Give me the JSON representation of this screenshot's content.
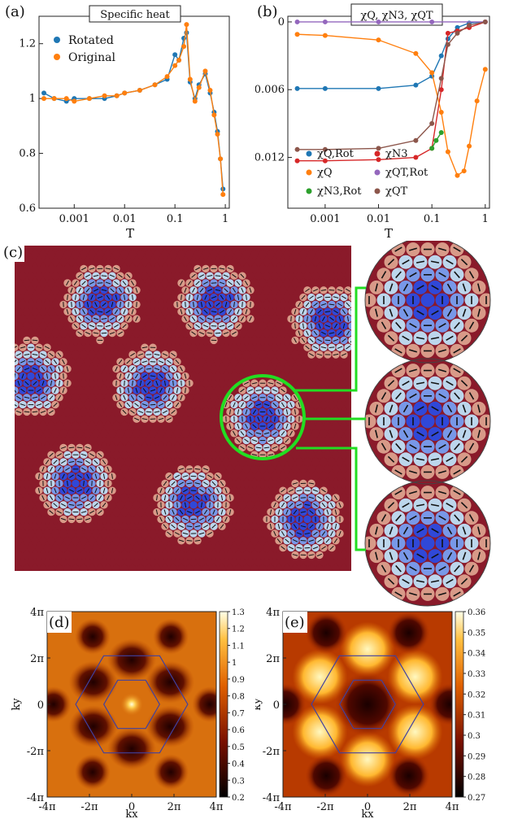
{
  "figure": {
    "panel_a": {
      "label": "(a)",
      "title": "Specific heat",
      "xlabel": "T",
      "yticks": [
        "1.2",
        "1",
        "0.8",
        "0.6"
      ],
      "xticks": [
        "0.001",
        "0.01",
        "0.1",
        "1"
      ],
      "legend": [
        "Rotated",
        "Original"
      ],
      "colors": {
        "rotated": "#1f77b4",
        "original": "#ff7f0e"
      }
    },
    "panel_b": {
      "label": "(b)",
      "title": "χQ, χN3, χQT",
      "xlabel": "T",
      "yticks": [
        "0",
        "-0.006",
        "-0.012"
      ],
      "xticks": [
        "0.001",
        "0.01",
        "0.1",
        "1"
      ],
      "legend": [
        "χQ,Rot",
        "χN3",
        "χQ",
        "χQT,Rot",
        "χN3,Rot",
        "χQT"
      ],
      "colors": {
        "q_rot": "#1f77b4",
        "n3": "#d62728",
        "q": "#ff7f0e",
        "qt_rot": "#9467bd",
        "n3_rot": "#2ca02c",
        "qt": "#8c564b"
      }
    },
    "panel_c": {
      "label": "(c)"
    },
    "panel_d": {
      "label": "(d)",
      "xlabel": "kx",
      "ylabel": "ky",
      "xticks": [
        "-4π",
        "-2π",
        "0",
        "2π",
        "4π"
      ],
      "yticks": [
        "4π",
        "2π",
        "0",
        "-2π",
        "-4π"
      ],
      "colorbar": [
        "1.3",
        "1.2",
        "1.1",
        "1",
        "0.9",
        "0.8",
        "0.7",
        "0.6",
        "0.5",
        "0.4",
        "0.3",
        "0.2"
      ]
    },
    "panel_e": {
      "label": "(e)",
      "xlabel": "kx",
      "ylabel": "ky",
      "xticks": [
        "-4π",
        "-2π",
        "0",
        "2π",
        "4π"
      ],
      "yticks": [
        "4π",
        "2π",
        "0",
        "-2π",
        "-4π"
      ],
      "colorbar": [
        "0.36",
        "0.35",
        "0.34",
        "0.33",
        "0.32",
        "0.31",
        "0.3",
        "0.29",
        "0.28",
        "0.27"
      ]
    }
  },
  "chart_data": [
    {
      "type": "scatter",
      "title": "Specific heat",
      "xlabel": "T",
      "ylabel": "",
      "xscale": "log",
      "xlim": [
        0.0002,
        1.2
      ],
      "ylim": [
        0.6,
        1.3
      ],
      "series": [
        {
          "name": "Rotated",
          "x": [
            0.00025,
            0.0004,
            0.0007,
            0.001,
            0.002,
            0.004,
            0.007,
            0.01,
            0.02,
            0.04,
            0.07,
            0.1,
            0.12,
            0.15,
            0.17,
            0.2,
            0.25,
            0.3,
            0.4,
            0.5,
            0.6,
            0.7,
            0.8,
            0.9
          ],
          "y": [
            1.02,
            1.0,
            0.99,
            1.0,
            1.0,
            1.0,
            1.01,
            1.02,
            1.03,
            1.05,
            1.07,
            1.16,
            1.14,
            1.22,
            1.24,
            1.06,
            1.0,
            1.05,
            1.09,
            1.02,
            0.95,
            0.88,
            0.78,
            0.67
          ]
        },
        {
          "name": "Original",
          "x": [
            0.00025,
            0.0004,
            0.0007,
            0.001,
            0.002,
            0.004,
            0.007,
            0.01,
            0.02,
            0.04,
            0.07,
            0.1,
            0.12,
            0.15,
            0.17,
            0.2,
            0.25,
            0.3,
            0.4,
            0.5,
            0.6,
            0.7,
            0.8,
            0.9
          ],
          "y": [
            1.0,
            1.0,
            1.0,
            0.99,
            1.0,
            1.01,
            1.01,
            1.02,
            1.03,
            1.05,
            1.08,
            1.12,
            1.14,
            1.19,
            1.27,
            1.07,
            0.99,
            1.04,
            1.1,
            1.03,
            0.94,
            0.87,
            0.78,
            0.65
          ]
        }
      ]
    },
    {
      "type": "scatter",
      "title": "χQ, χN3, χQT",
      "xlabel": "T",
      "ylabel": "",
      "xscale": "log",
      "xlim": [
        0.0002,
        1.2
      ],
      "ylim": [
        -0.0165,
        0.0005
      ],
      "series": [
        {
          "name": "χQ,Rot",
          "x": [
            0.0003,
            0.001,
            0.01,
            0.05,
            0.1,
            0.15,
            0.2,
            0.3,
            0.5,
            1.0
          ],
          "y": [
            -0.0059,
            -0.0059,
            -0.0059,
            -0.0056,
            -0.0048,
            -0.003,
            -0.0015,
            -0.0005,
            -0.0001,
            0.0
          ]
        },
        {
          "name": "χN3",
          "x": [
            0.0003,
            0.001,
            0.01,
            0.05,
            0.1,
            0.15,
            0.2,
            0.3,
            0.5,
            1.0
          ],
          "y": [
            -0.0123,
            -0.0123,
            -0.0122,
            -0.012,
            -0.0112,
            -0.006,
            -0.001,
            -0.0008,
            -0.0005,
            0.0
          ]
        },
        {
          "name": "χQ",
          "x": [
            0.0003,
            0.001,
            0.01,
            0.05,
            0.1,
            0.15,
            0.2,
            0.3,
            0.4,
            0.5,
            0.7,
            1.0
          ],
          "y": [
            -0.0011,
            -0.0012,
            -0.0016,
            -0.0028,
            -0.0045,
            -0.008,
            -0.0115,
            -0.0136,
            -0.0132,
            -0.011,
            -0.007,
            -0.0042
          ]
        },
        {
          "name": "χQT,Rot",
          "x": [
            0.0003,
            0.001,
            0.01,
            0.1,
            1.0
          ],
          "y": [
            0.0,
            0.0,
            0.0,
            0.0,
            0.0
          ]
        },
        {
          "name": "χN3,Rot",
          "x": [
            0.1,
            0.12,
            0.15
          ],
          "y": [
            -0.0112,
            -0.0105,
            -0.0098
          ]
        },
        {
          "name": "χQT",
          "x": [
            0.0003,
            0.001,
            0.01,
            0.05,
            0.1,
            0.15,
            0.2,
            0.3,
            0.5,
            1.0
          ],
          "y": [
            -0.0113,
            -0.0113,
            -0.0112,
            -0.0105,
            -0.009,
            -0.005,
            -0.002,
            -0.001,
            -0.0003,
            0.0
          ]
        }
      ]
    },
    {
      "type": "heatmap",
      "title": "",
      "xlabel": "kx",
      "ylabel": "ky",
      "xlim": [
        -12.566,
        12.566
      ],
      "ylim": [
        -12.566,
        12.566
      ],
      "zlim": [
        0.2,
        1.3
      ]
    },
    {
      "type": "heatmap",
      "title": "",
      "xlabel": "kx",
      "ylabel": "ky",
      "xlim": [
        -12.566,
        12.566
      ],
      "ylim": [
        -12.566,
        12.566
      ],
      "zlim": [
        0.27,
        0.36
      ]
    }
  ]
}
